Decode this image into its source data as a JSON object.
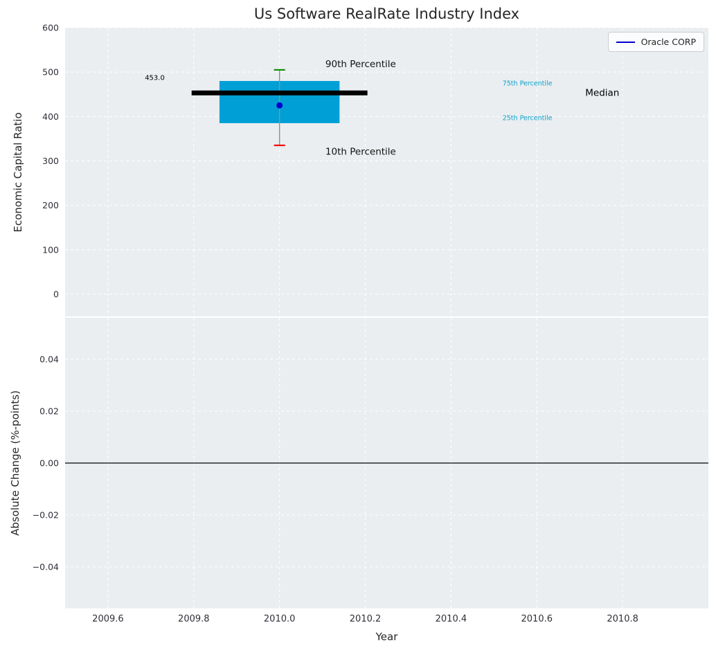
{
  "figure": {
    "title": "Us Software RealRate Industry Index",
    "xlabel": "Year",
    "background": "#ffffff",
    "axes_background": "#eaeef0",
    "grid_color": "#ffffff",
    "tick_color": "#2e2e38"
  },
  "legend": {
    "label": "Oracle CORP",
    "line_color": "#0000cd",
    "position": "upper right"
  },
  "chart_data": [
    {
      "type": "boxplot",
      "title": "Us Software RealRate Industry Index",
      "ylabel": "Economic Capital Ratio",
      "xlabel": "Year",
      "xlim": [
        2009.5,
        2011.0
      ],
      "ylim": [
        -50,
        600
      ],
      "grid": true,
      "legend_position": "upper right",
      "xticks": {
        "values": [
          2009.6,
          2009.8,
          2010.0,
          2010.2,
          2010.4,
          2010.6,
          2010.8
        ],
        "labels": [
          "2009.6",
          "2009.8",
          "2010.0",
          "2010.2",
          "2010.4",
          "2010.6",
          "2010.8"
        ]
      },
      "yticks": {
        "values": [
          0,
          100,
          200,
          300,
          400,
          500,
          600
        ],
        "labels": [
          "0",
          "100",
          "200",
          "300",
          "400",
          "500",
          "600"
        ]
      },
      "box": {
        "x": 2010.0,
        "p10": 335,
        "p25": 385,
        "median": 453,
        "p75": 480,
        "p90": 505,
        "company_value": 425,
        "box_half_width": 0.14,
        "median_half_width": 0.205,
        "cap_half_width": 0.013,
        "box_color": "#00a0d6",
        "median_color": "#000000",
        "whisker_color": "#909090",
        "p90_cap_color": "#0a8f08",
        "p10_cap_color": "#f10d0c",
        "point_color": "#0000cd"
      },
      "annotations": [
        {
          "text": "453.0",
          "x": 2009.686,
          "y": 486,
          "size": 10,
          "color": "#000000"
        },
        {
          "text": "90th Percentile",
          "x": 2010.107,
          "y": 517,
          "size": 13.5,
          "color": "#111111"
        },
        {
          "text": "10th Percentile",
          "x": 2010.107,
          "y": 320,
          "size": 13.5,
          "color": "#111111"
        },
        {
          "text": "75th Percentile",
          "x": 2010.52,
          "y": 474,
          "size": 9.5,
          "color": "#0ba0ce"
        },
        {
          "text": "25th Percentile",
          "x": 2010.52,
          "y": 396,
          "size": 9.5,
          "color": "#0ba0ce"
        },
        {
          "text": "Median",
          "x": 2010.713,
          "y": 453,
          "size": 13.5,
          "color": "#000000"
        }
      ]
    },
    {
      "type": "line",
      "ylabel": "Absolute Change (%-points)",
      "xlim": [
        2009.5,
        2011.0
      ],
      "ylim": [
        -0.056,
        0.056
      ],
      "grid": true,
      "yticks": {
        "values": [
          0.04,
          0.02,
          0.0,
          -0.02,
          -0.04
        ],
        "labels": [
          "0.04",
          "0.02",
          "0.00",
          "−0.02",
          "−0.04"
        ]
      },
      "zero_line": {
        "y": 0.0,
        "color": "#000000"
      }
    }
  ]
}
